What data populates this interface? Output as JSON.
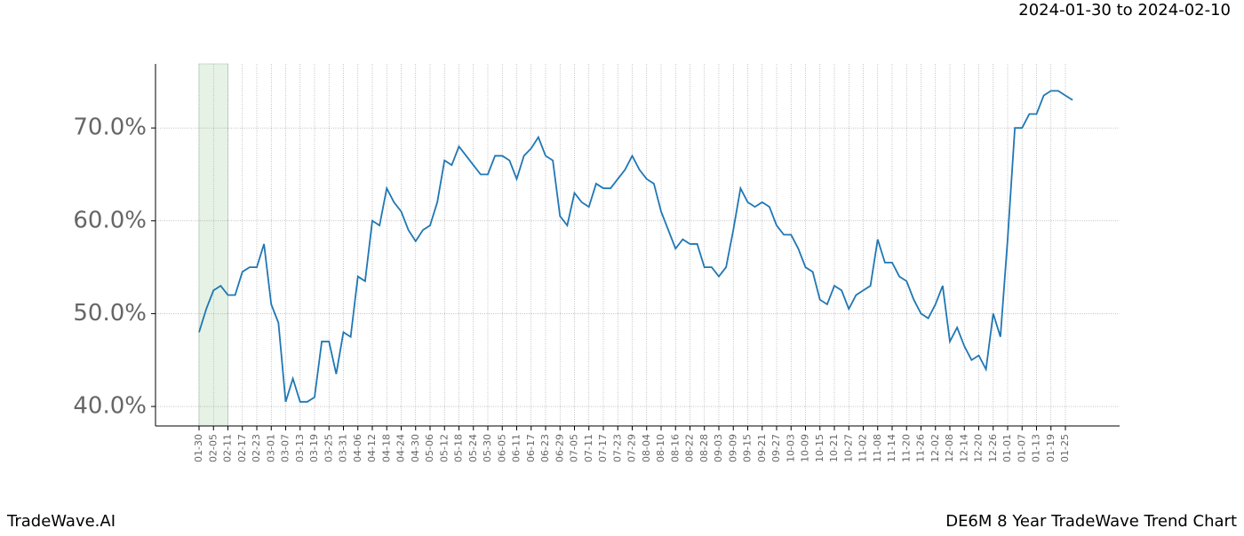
{
  "chart_data": {
    "type": "line",
    "title": "2024-01-30 to 2024-02-10",
    "brand": "TradeWave.AI",
    "subtitle": "DE6M 8 Year TradeWave Trend Chart",
    "categories": [
      "01-30",
      null,
      "02-05",
      null,
      "02-11",
      null,
      "02-17",
      null,
      "02-23",
      null,
      "03-01",
      null,
      "03-07",
      null,
      "03-13",
      null,
      "03-19",
      null,
      "03-25",
      null,
      "03-31",
      null,
      "04-06",
      null,
      "04-12",
      null,
      "04-18",
      null,
      "04-24",
      null,
      "04-30",
      null,
      "05-06",
      null,
      "05-12",
      null,
      "05-18",
      null,
      "05-24",
      null,
      "05-30",
      null,
      "06-05",
      null,
      "06-11",
      null,
      "06-17",
      null,
      "06-23",
      null,
      "06-29",
      null,
      "07-05",
      null,
      "07-11",
      null,
      "07-17",
      null,
      "07-23",
      null,
      "07-29",
      null,
      "08-04",
      null,
      "08-10",
      null,
      "08-16",
      null,
      "08-22",
      null,
      "08-28",
      null,
      "09-03",
      null,
      "09-09",
      null,
      "09-15",
      null,
      "09-21",
      null,
      "09-27",
      null,
      "10-03",
      null,
      "10-09",
      null,
      "10-15",
      null,
      "10-21",
      null,
      "10-27",
      null,
      "11-02",
      null,
      "11-08",
      null,
      "11-14",
      null,
      "11-20",
      null,
      "11-26",
      null,
      "12-02",
      null,
      "12-08",
      null,
      "12-14",
      null,
      "12-20",
      null,
      "12-26",
      null,
      "01-01",
      null,
      "01-07",
      null,
      "01-13",
      null,
      "01-19",
      null,
      "01-25",
      null
    ],
    "series": [
      {
        "color": "#1f77b4",
        "values": [
          48,
          50.5,
          52.5,
          53,
          52,
          52,
          54.5,
          55,
          55,
          57.5,
          51,
          49,
          40.5,
          43,
          40.5,
          40.5,
          41,
          47,
          47,
          43.5,
          48,
          47.5,
          54,
          53.5,
          60,
          59.5,
          63.5,
          62,
          61,
          59,
          57.8,
          59,
          59.5,
          62,
          66.5,
          66,
          68,
          67,
          66,
          65,
          65,
          67,
          67,
          66.5,
          64.5,
          67,
          67.8,
          69,
          67,
          66.5,
          60.5,
          59.5,
          63,
          62,
          61.5,
          64,
          63.5,
          63.5,
          64.5,
          65.5,
          67,
          65.5,
          64.5,
          64,
          61,
          59,
          57,
          58,
          57.5,
          57.5,
          55,
          55,
          54,
          55,
          59,
          63.5,
          62,
          61.5,
          62,
          61.5,
          59.5,
          58.5,
          58.5,
          57,
          55,
          54.5,
          51.5,
          51,
          53,
          52.5,
          50.5,
          52,
          52.5,
          53,
          58,
          55.5,
          55.5,
          54,
          53.5,
          51.5,
          50,
          49.5,
          51,
          53,
          47,
          48.5,
          46.5,
          45,
          45.5,
          44,
          50,
          47.5,
          58,
          70,
          70,
          71.5,
          71.5,
          73.5,
          74,
          74,
          73.5,
          73
        ]
      }
    ],
    "ylim": [
      37.9,
      76.9
    ],
    "yticks": [
      {
        "value": 40,
        "label": "40.0%"
      },
      {
        "value": 50,
        "label": "50.0%"
      },
      {
        "value": 60,
        "label": "60.0%"
      },
      {
        "value": 70,
        "label": "70.0%"
      }
    ],
    "grid": true
  }
}
